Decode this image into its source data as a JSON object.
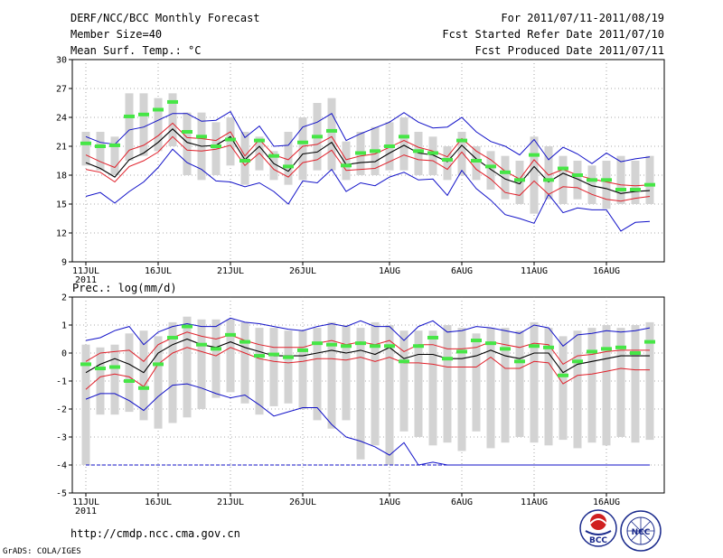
{
  "header": {
    "left": [
      "DERF/NCC/BCC Monthly Forecast",
      "Member Size=40",
      "Mean Surf. Temp.: °C"
    ],
    "right": [
      "For 2011/07/11-2011/08/19",
      "Fcst Started Refer Date 2011/07/10",
      "Fcst Produced Date 2011/07/11"
    ]
  },
  "footer": {
    "url": "http://cmdp.ncc.cma.gov.cn",
    "credit": "GrADS: COLA/IGES"
  },
  "logos": {
    "bcc": "BCC",
    "ncc": "NCC"
  },
  "colors": {
    "box": "#d3d3d3",
    "mean": "#46e646",
    "median": "#000000",
    "percentile": "#e0202a",
    "extreme": "#1010c8",
    "grid": "#909090"
  },
  "chart_data": [
    {
      "type": "box-plot-timeseries",
      "title": "Mean Surf. Temp.: °C",
      "ylim": [
        9,
        30
      ],
      "yticks": [
        9,
        12,
        15,
        18,
        21,
        24,
        27,
        30
      ],
      "xticks": [
        {
          "day": 1,
          "label": "11JUL",
          "sub": "2011"
        },
        {
          "day": 6,
          "label": "16JUL"
        },
        {
          "day": 11,
          "label": "21JUL"
        },
        {
          "day": 16,
          "label": "26JUL"
        },
        {
          "day": 22,
          "label": "1AUG"
        },
        {
          "day": 27,
          "label": "6AUG"
        },
        {
          "day": 32,
          "label": "11AUG"
        },
        {
          "day": 37,
          "label": "16AUG"
        }
      ],
      "grid": true,
      "box_low": [
        19.0,
        18.5,
        18.0,
        19.5,
        20.0,
        20.5,
        21.0,
        18.0,
        17.5,
        18.0,
        19.0,
        17.0,
        18.5,
        17.5,
        17.0,
        17.5,
        18.5,
        18.5,
        17.5,
        18.0,
        18.0,
        18.5,
        18.5,
        18.0,
        18.0,
        17.5,
        18.0,
        17.5,
        16.5,
        15.5,
        15.0,
        14.0,
        15.5,
        15.0,
        15.5,
        15.0,
        14.5,
        15.0,
        15.0,
        15.0
      ],
      "box_high": [
        22.5,
        22.5,
        22.0,
        26.5,
        26.5,
        26.0,
        26.5,
        24.5,
        24.5,
        23.5,
        24.0,
        22.5,
        22.0,
        20.5,
        22.5,
        24.0,
        25.5,
        26.0,
        21.5,
        22.5,
        23.0,
        23.5,
        24.0,
        22.5,
        22.0,
        21.0,
        22.5,
        21.0,
        20.5,
        20.0,
        19.5,
        22.0,
        21.0,
        20.0,
        19.5,
        19.0,
        19.5,
        20.0,
        19.5,
        20.0
      ],
      "mean": [
        21.3,
        21.0,
        21.1,
        24.1,
        24.3,
        24.8,
        25.6,
        22.5,
        22.0,
        21.0,
        21.7,
        19.5,
        21.6,
        20.0,
        18.9,
        21.4,
        22.0,
        22.6,
        19.0,
        20.3,
        20.5,
        21.0,
        22.0,
        20.5,
        20.3,
        19.6,
        21.6,
        19.5,
        18.9,
        18.3,
        17.5,
        20.1,
        17.5,
        18.7,
        18.0,
        17.5,
        17.5,
        16.5,
        16.5,
        17.0
      ],
      "median": [
        19.3,
        18.7,
        17.8,
        19.6,
        20.3,
        21.4,
        22.8,
        21.4,
        21.0,
        21.1,
        22.0,
        19.6,
        21.0,
        19.2,
        18.4,
        20.2,
        20.4,
        21.4,
        19.1,
        19.3,
        19.4,
        20.3,
        21.1,
        20.3,
        20.1,
        19.4,
        21.1,
        19.7,
        18.6,
        17.6,
        17.1,
        18.9,
        17.3,
        18.2,
        17.6,
        16.9,
        16.6,
        16.1,
        16.3,
        16.4
      ],
      "p75": [
        20.1,
        19.4,
        18.8,
        20.6,
        21.1,
        22.1,
        23.4,
        21.9,
        21.8,
        21.6,
        22.5,
        20.0,
        21.7,
        20.1,
        19.6,
        21.0,
        21.2,
        22.0,
        19.6,
        20.0,
        20.2,
        20.9,
        21.6,
        20.9,
        20.5,
        19.9,
        21.8,
        20.5,
        19.6,
        18.4,
        17.6,
        19.6,
        18.0,
        18.6,
        18.0,
        17.6,
        17.3,
        17.0,
        16.9,
        17.0
      ],
      "p25": [
        18.6,
        18.3,
        17.3,
        18.9,
        19.5,
        20.4,
        22.0,
        20.6,
        20.5,
        20.7,
        21.1,
        19.0,
        20.3,
        18.6,
        17.8,
        19.3,
        19.6,
        20.6,
        18.5,
        18.6,
        18.7,
        19.4,
        20.1,
        19.6,
        19.5,
        18.6,
        20.4,
        18.6,
        17.6,
        16.2,
        15.9,
        17.4,
        16.0,
        16.8,
        16.7,
        16.0,
        15.5,
        15.3,
        15.6,
        15.8
      ],
      "max": [
        22.0,
        21.4,
        21.2,
        22.7,
        23.0,
        23.7,
        24.4,
        24.4,
        23.6,
        23.7,
        24.6,
        21.9,
        23.1,
        21.0,
        21.1,
        23.0,
        23.5,
        24.4,
        21.6,
        22.3,
        22.9,
        23.5,
        24.5,
        23.5,
        22.9,
        23.0,
        24.0,
        22.5,
        21.5,
        21.0,
        20.1,
        21.7,
        19.6,
        20.9,
        20.2,
        19.2,
        20.3,
        19.4,
        19.7,
        19.9
      ],
      "min": [
        15.8,
        16.2,
        15.1,
        16.3,
        17.3,
        18.8,
        20.7,
        19.3,
        18.6,
        17.4,
        17.3,
        16.8,
        17.2,
        16.3,
        15.0,
        17.4,
        17.2,
        18.6,
        16.3,
        17.2,
        16.9,
        17.8,
        18.3,
        17.5,
        17.6,
        15.9,
        18.5,
        16.6,
        15.4,
        13.9,
        13.5,
        13.0,
        16.0,
        14.1,
        14.6,
        14.4,
        14.4,
        12.2,
        13.1,
        13.2
      ]
    },
    {
      "type": "box-plot-timeseries",
      "title": "Prec.: log(mm/d)",
      "ylim": [
        -5,
        2
      ],
      "yticks": [
        -5,
        -4,
        -3,
        -2,
        -1,
        0,
        1,
        2
      ],
      "xticks": [
        {
          "day": 1,
          "label": "11JUL",
          "sub": "2011"
        },
        {
          "day": 6,
          "label": "16JUL"
        },
        {
          "day": 11,
          "label": "21JUL"
        },
        {
          "day": 16,
          "label": "26JUL"
        },
        {
          "day": 22,
          "label": "1AUG"
        },
        {
          "day": 27,
          "label": "6AUG"
        },
        {
          "day": 32,
          "label": "11AUG"
        },
        {
          "day": 37,
          "label": "16AUG"
        }
      ],
      "grid": true,
      "box_low": [
        -4.0,
        -2.2,
        -2.2,
        -2.1,
        -2.4,
        -2.7,
        -2.5,
        -2.3,
        -2.0,
        -1.6,
        -1.4,
        -1.8,
        -2.2,
        -1.9,
        -1.8,
        -2.0,
        -2.4,
        -2.7,
        -2.4,
        -3.8,
        -3.3,
        -4.0,
        -2.8,
        -3.0,
        -3.3,
        -3.2,
        -3.5,
        -2.8,
        -3.4,
        -3.2,
        -3.0,
        -3.2,
        -3.3,
        -3.1,
        -3.4,
        -3.2,
        -3.3,
        -3.0,
        -3.2,
        -3.1
      ],
      "box_high": [
        0.3,
        0.2,
        0.3,
        0.7,
        0.8,
        0.6,
        1.1,
        1.3,
        1.2,
        1.2,
        1.2,
        1.1,
        0.9,
        0.9,
        0.8,
        0.8,
        0.9,
        1.1,
        1.0,
        0.9,
        1.1,
        1.0,
        0.8,
        0.8,
        0.8,
        1.0,
        0.9,
        0.7,
        0.9,
        0.9,
        0.8,
        1.1,
        0.9,
        0.6,
        0.8,
        0.9,
        1.0,
        0.9,
        1.0,
        1.1
      ],
      "mean": [
        -0.4,
        -0.55,
        -0.5,
        -1.0,
        -1.25,
        -0.4,
        0.55,
        0.95,
        0.3,
        0.15,
        0.65,
        0.4,
        -0.1,
        -0.05,
        -0.15,
        0.1,
        0.35,
        0.3,
        0.25,
        0.35,
        0.25,
        0.25,
        -0.3,
        0.25,
        0.55,
        -0.2,
        0.05,
        0.45,
        0.35,
        0.15,
        -0.3,
        0.25,
        0.2,
        -0.8,
        -0.3,
        0.05,
        0.15,
        0.2,
        0.0,
        0.4
      ],
      "median": [
        -0.7,
        -0.4,
        -0.2,
        -0.4,
        -0.7,
        0.0,
        0.3,
        0.5,
        0.3,
        0.2,
        0.4,
        0.2,
        0.05,
        -0.1,
        -0.1,
        -0.1,
        0.0,
        0.1,
        0.0,
        0.1,
        -0.05,
        0.2,
        -0.2,
        -0.05,
        -0.05,
        -0.2,
        -0.2,
        -0.1,
        0.1,
        -0.1,
        -0.2,
        0.0,
        0.0,
        -0.7,
        -0.4,
        -0.3,
        -0.2,
        -0.1,
        -0.1,
        -0.1
      ],
      "p75": [
        -0.3,
        0.0,
        0.05,
        0.1,
        -0.3,
        0.3,
        0.55,
        0.75,
        0.6,
        0.5,
        0.65,
        0.45,
        0.3,
        0.2,
        0.2,
        0.2,
        0.35,
        0.45,
        0.3,
        0.4,
        0.3,
        0.45,
        0.05,
        0.3,
        0.3,
        0.15,
        0.15,
        0.2,
        0.4,
        0.3,
        0.2,
        0.35,
        0.3,
        -0.4,
        -0.1,
        -0.05,
        0.05,
        0.1,
        0.1,
        0.1
      ],
      "p25": [
        -1.3,
        -0.85,
        -0.75,
        -0.85,
        -1.2,
        -0.4,
        0.0,
        0.2,
        0.05,
        -0.1,
        0.2,
        0.0,
        -0.2,
        -0.3,
        -0.35,
        -0.3,
        -0.2,
        -0.2,
        -0.25,
        -0.15,
        -0.3,
        -0.15,
        -0.35,
        -0.35,
        -0.4,
        -0.5,
        -0.5,
        -0.5,
        -0.15,
        -0.55,
        -0.55,
        -0.3,
        -0.35,
        -1.1,
        -0.8,
        -0.75,
        -0.65,
        -0.55,
        -0.6,
        -0.6
      ],
      "max": [
        0.45,
        0.55,
        0.8,
        0.95,
        0.3,
        0.75,
        0.95,
        1.05,
        0.95,
        0.95,
        1.25,
        1.1,
        1.05,
        0.95,
        0.85,
        0.8,
        0.95,
        1.05,
        0.95,
        1.15,
        0.95,
        0.95,
        0.45,
        0.95,
        1.15,
        0.75,
        0.8,
        0.95,
        0.9,
        0.8,
        0.7,
        1.0,
        0.9,
        0.25,
        0.65,
        0.7,
        0.8,
        0.75,
        0.8,
        0.9
      ],
      "min": [
        -1.65,
        -1.45,
        -1.45,
        -1.7,
        -2.05,
        -1.55,
        -1.15,
        -1.1,
        -1.25,
        -1.45,
        -1.6,
        -1.5,
        -1.85,
        -2.25,
        -2.1,
        -1.95,
        -1.95,
        -2.55,
        -3.0,
        -3.15,
        -3.35,
        -3.65,
        -3.2,
        -4.0,
        -3.9,
        -4.0,
        -4.0,
        -4.0,
        -4.0,
        -4.0,
        -4.0,
        -4.0,
        -4.0,
        -4.0,
        -4.0,
        -4.0,
        -4.0,
        -4.0,
        -4.0,
        -4.0
      ],
      "floor": -4.0
    }
  ]
}
